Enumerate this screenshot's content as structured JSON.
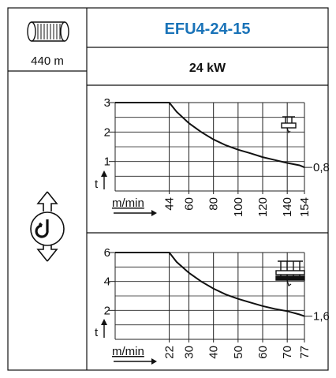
{
  "header": {
    "model": "EFU4-24-15",
    "power": "24 kW",
    "rope_length": "440 m"
  },
  "icons": {
    "rope_drum": "rope-drum-icon",
    "hook": "hook-updown-icon",
    "trolley_single": "single-trolley-icon",
    "trolley_double": "double-trolley-icon"
  },
  "colors": {
    "title": "#1a73b8",
    "curve": "#111111",
    "grid": "#222222"
  },
  "chart_data": [
    {
      "type": "line",
      "title": "",
      "xlabel": "m/min",
      "ylabel": "t",
      "x_ticks": [
        44,
        60,
        80,
        100,
        120,
        140,
        154
      ],
      "y_ticks": [
        1,
        2,
        3
      ],
      "xlim": [
        0,
        154
      ],
      "ylim": [
        0,
        3
      ],
      "end_label": "0,8",
      "series": [
        {
          "x": [
            0,
            44,
            50,
            60,
            70,
            80,
            90,
            100,
            110,
            120,
            130,
            140,
            150,
            154
          ],
          "y": [
            3,
            3,
            2.69,
            2.3,
            2.0,
            1.75,
            1.55,
            1.4,
            1.28,
            1.15,
            1.05,
            0.95,
            0.87,
            0.8
          ]
        }
      ]
    },
    {
      "type": "line",
      "title": "",
      "xlabel": "m/min",
      "ylabel": "t",
      "x_ticks": [
        22,
        30,
        40,
        50,
        60,
        70,
        77
      ],
      "y_ticks": [
        2,
        4,
        6
      ],
      "xlim": [
        0,
        77
      ],
      "ylim": [
        0,
        6
      ],
      "end_label": "1,6",
      "series": [
        {
          "x": [
            0,
            22,
            25,
            30,
            35,
            40,
            45,
            50,
            55,
            60,
            65,
            70,
            75,
            77
          ],
          "y": [
            6,
            6,
            5.35,
            4.6,
            4.0,
            3.5,
            3.1,
            2.8,
            2.55,
            2.3,
            2.1,
            1.95,
            1.72,
            1.6
          ]
        }
      ]
    }
  ]
}
